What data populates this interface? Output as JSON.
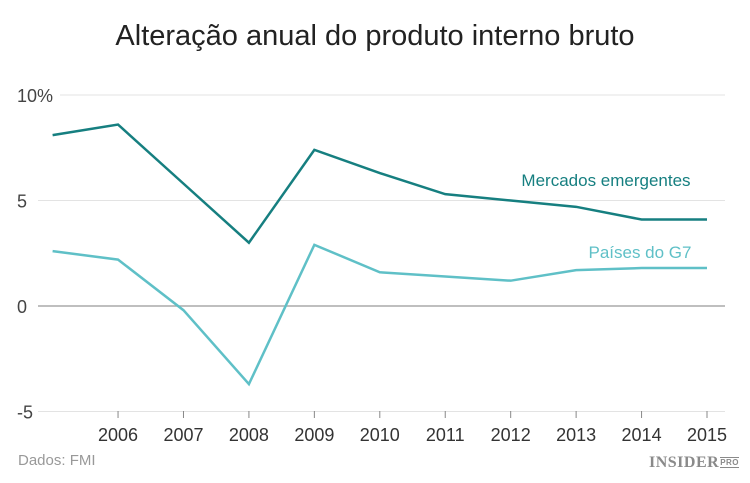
{
  "chart_data": {
    "type": "line",
    "title": "Alteração anual do produto interno bruto",
    "xlabel": "",
    "ylabel": "",
    "x": [
      2005,
      2006,
      2007,
      2008,
      2009,
      2010,
      2011,
      2012,
      2013,
      2014,
      2015
    ],
    "x_tick_labels": [
      "2006",
      "2007",
      "2008",
      "2009",
      "2010",
      "2011",
      "2012",
      "2013",
      "2014",
      "2015"
    ],
    "y_tick_labels": [
      "10%",
      "5",
      "0",
      "-5"
    ],
    "ylim": [
      -5,
      10
    ],
    "grid": true,
    "series": [
      {
        "name": "Mercados emergentes",
        "color": "#167f80",
        "values": [
          8.1,
          8.6,
          5.8,
          3.0,
          7.4,
          6.3,
          5.3,
          5.0,
          4.7,
          4.1,
          4.1
        ]
      },
      {
        "name": "Países do G7",
        "color": "#5fc0c7",
        "values": [
          2.6,
          2.2,
          -0.2,
          -3.7,
          2.9,
          1.6,
          1.4,
          1.2,
          1.7,
          1.8,
          1.8
        ]
      }
    ],
    "source": "Dados: FMI"
  },
  "logo": {
    "text": "INSIDER",
    "sub": "PRO"
  }
}
